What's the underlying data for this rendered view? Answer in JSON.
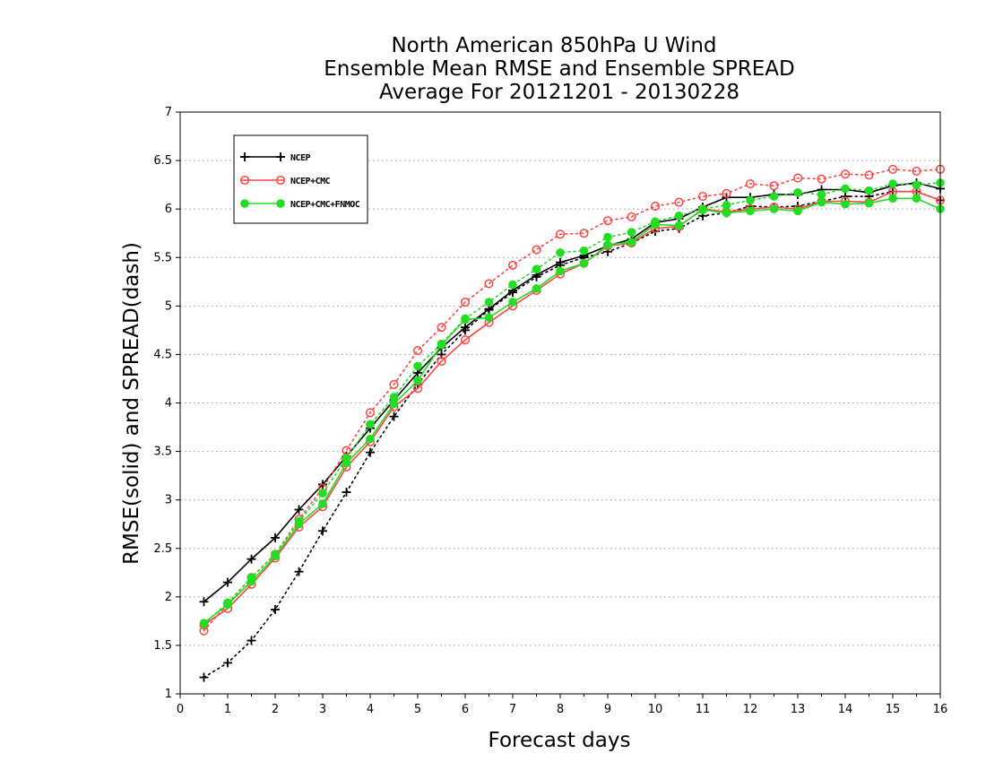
{
  "chart_data": {
    "type": "line",
    "title": [
      "North American 850hPa U Wind",
      "Ensemble Mean RMSE and Ensemble SPREAD",
      "Average For 20121201 - 20130228"
    ],
    "xlabel": "Forecast days",
    "ylabel": "RMSE(solid) and SPREAD(dash)",
    "xlim": [
      0,
      16
    ],
    "ylim": [
      1,
      7
    ],
    "xticks": [
      "0",
      "1",
      "2",
      "3",
      "4",
      "5",
      "6",
      "7",
      "8",
      "9",
      "10",
      "11",
      "12",
      "13",
      "14",
      "15",
      "16"
    ],
    "yticks": [
      "1",
      "1.5",
      "2",
      "2.5",
      "3",
      "3.5",
      "4",
      "4.5",
      "5",
      "5.5",
      "6",
      "6.5",
      "7"
    ],
    "grid": "horizontal dotted",
    "legend_position": "top-left",
    "x": [
      0.5,
      1,
      1.5,
      2,
      2.5,
      3,
      3.5,
      4,
      4.5,
      5,
      5.5,
      6,
      6.5,
      7,
      7.5,
      8,
      8.5,
      9,
      9.5,
      10,
      10.5,
      11,
      11.5,
      12,
      12.5,
      13,
      13.5,
      14,
      14.5,
      15,
      15.5,
      16
    ],
    "series": [
      {
        "name": "NCEP",
        "style": "solid",
        "color": "#000000",
        "marker": "plus",
        "values": [
          1.95,
          2.15,
          2.39,
          2.61,
          2.9,
          3.16,
          3.45,
          3.74,
          4.03,
          4.31,
          4.57,
          4.78,
          4.97,
          5.16,
          5.32,
          5.45,
          5.52,
          5.62,
          5.69,
          5.86,
          5.9,
          6.02,
          6.12,
          6.12,
          6.15,
          6.15,
          6.2,
          6.2,
          6.17,
          6.24,
          6.27,
          6.21
        ]
      },
      {
        "name": "NCEP",
        "style": "dash",
        "color": "#000000",
        "marker": "plus",
        "values": [
          1.17,
          1.32,
          1.55,
          1.87,
          2.26,
          2.68,
          3.08,
          3.49,
          3.86,
          4.19,
          4.5,
          4.75,
          4.96,
          5.14,
          5.3,
          5.42,
          5.5,
          5.56,
          5.65,
          5.77,
          5.8,
          5.93,
          5.96,
          6.03,
          6.02,
          6.03,
          6.08,
          6.13,
          6.13,
          6.18,
          6.18,
          6.09
        ]
      },
      {
        "name": "NCEP+CMC",
        "style": "solid",
        "color": "#ff4444",
        "marker": "open-circle",
        "values": [
          1.71,
          1.88,
          2.13,
          2.4,
          2.72,
          2.93,
          3.34,
          3.6,
          3.96,
          4.15,
          4.43,
          4.65,
          4.83,
          5.0,
          5.16,
          5.33,
          5.44,
          5.62,
          5.65,
          5.8,
          5.82,
          6.0,
          5.97,
          6.0,
          6.02,
          6.0,
          6.08,
          6.08,
          6.07,
          6.18,
          6.18,
          6.09
        ]
      },
      {
        "name": "NCEP+CMC",
        "style": "dash",
        "color": "#ff4444",
        "marker": "open-circle",
        "values": [
          1.65,
          1.93,
          2.2,
          2.44,
          2.8,
          3.12,
          3.51,
          3.9,
          4.19,
          4.54,
          4.78,
          5.04,
          5.23,
          5.42,
          5.58,
          5.74,
          5.75,
          5.88,
          5.92,
          6.03,
          6.07,
          6.13,
          6.16,
          6.26,
          6.24,
          6.32,
          6.31,
          6.36,
          6.35,
          6.41,
          6.39,
          6.41
        ]
      },
      {
        "name": "NCEP+CMC+FNMOC",
        "style": "solid",
        "color": "#22dd22",
        "marker": "filled-circle",
        "values": [
          1.73,
          1.92,
          2.16,
          2.42,
          2.75,
          2.96,
          3.38,
          3.63,
          3.99,
          4.23,
          4.6,
          4.86,
          4.88,
          5.04,
          5.18,
          5.36,
          5.44,
          5.63,
          5.66,
          5.84,
          5.83,
          5.99,
          5.96,
          5.98,
          6.0,
          5.98,
          6.07,
          6.05,
          6.06,
          6.11,
          6.11,
          6.0
        ]
      },
      {
        "name": "NCEP+CMC+FNMOC",
        "style": "dash",
        "color": "#22dd22",
        "marker": "filled-circle",
        "values": [
          1.72,
          1.94,
          2.2,
          2.44,
          2.78,
          3.07,
          3.43,
          3.78,
          4.06,
          4.38,
          4.61,
          4.87,
          5.04,
          5.22,
          5.38,
          5.55,
          5.57,
          5.71,
          5.76,
          5.87,
          5.93,
          6.0,
          6.04,
          6.09,
          6.13,
          6.17,
          6.15,
          6.21,
          6.19,
          6.26,
          6.25,
          6.27
        ]
      }
    ],
    "legend": [
      {
        "label": "NCEP",
        "color": "#000000",
        "marker": "plus"
      },
      {
        "label": "NCEP+CMC",
        "color": "#ff4444",
        "marker": "open-circle"
      },
      {
        "label": "NCEP+CMC+FNMOC",
        "color": "#22dd22",
        "marker": "filled-circle"
      }
    ]
  }
}
